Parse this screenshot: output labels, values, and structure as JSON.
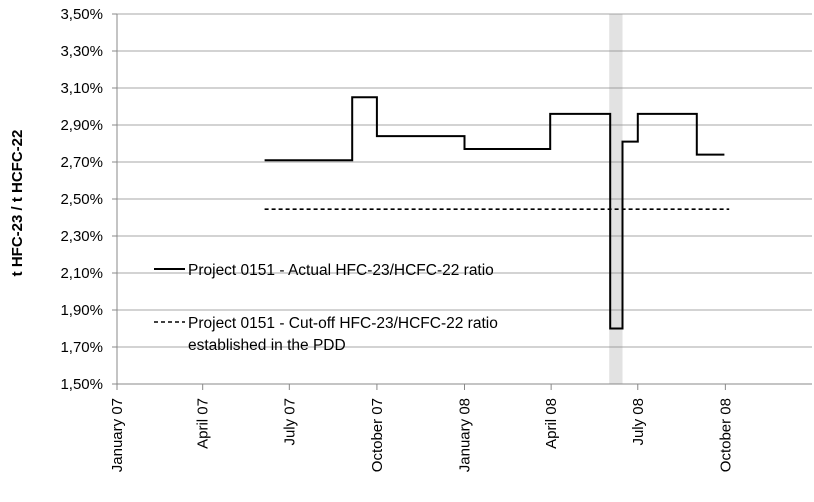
{
  "chart_data": {
    "type": "line",
    "title": "",
    "ylabel": "t HFC-23 / t HCFC-22",
    "xlabel": "",
    "ylim": [
      1.5,
      3.5
    ],
    "ytick_values": [
      1.5,
      1.7,
      1.9,
      2.1,
      2.3,
      2.5,
      2.7,
      2.9,
      3.1,
      3.3,
      3.5
    ],
    "ytick_labels": [
      "1,50%",
      "1,70%",
      "1,90%",
      "2,10%",
      "2,30%",
      "2,50%",
      "2,70%",
      "2,90%",
      "3,10%",
      "3,30%",
      "3,50%"
    ],
    "xlim": [
      "2007-01-01",
      "2008-12-31"
    ],
    "xtick_values": [
      "2007-01-01",
      "2007-04-01",
      "2007-07-01",
      "2007-10-01",
      "2008-01-01",
      "2008-04-01",
      "2008-07-01",
      "2008-10-01"
    ],
    "xtick_labels": [
      "January 07",
      "April 07",
      "July 07",
      "October 07",
      "January 08",
      "April 08",
      "July 08",
      "October 08"
    ],
    "grid": "horizontal",
    "legend_position": "bottom-left",
    "highlight_band": [
      "2008-06-01",
      "2008-06-15"
    ],
    "series": [
      {
        "name": "Project 0151 - Actual HFC-23/HCFC-22 ratio",
        "style": "solid",
        "color": "#000000",
        "x": [
          "2007-06-05",
          "2007-09-05",
          "2007-09-05",
          "2007-10-01",
          "2007-10-01",
          "2008-01-01",
          "2008-01-01",
          "2008-03-31",
          "2008-03-31",
          "2008-06-02",
          "2008-06-02",
          "2008-06-15",
          "2008-06-15",
          "2008-07-01",
          "2008-07-01",
          "2008-09-01",
          "2008-09-01",
          "2008-09-30"
        ],
        "y": [
          2.71,
          2.71,
          3.05,
          3.05,
          2.84,
          2.84,
          2.77,
          2.77,
          2.96,
          2.96,
          1.8,
          1.8,
          2.81,
          2.81,
          2.96,
          2.96,
          2.74,
          2.74
        ]
      },
      {
        "name": "Project 0151 - Cut-off HFC-23/HCFC-22 ratio established in the PDD",
        "legend_lines": [
          "Project 0151 - Cut-off HFC-23/HCFC-22 ratio",
          "established in the PDD"
        ],
        "style": "dashed",
        "color": "#000000",
        "x": [
          "2007-06-05",
          "2008-10-05"
        ],
        "y": [
          2.445,
          2.445
        ]
      }
    ]
  }
}
